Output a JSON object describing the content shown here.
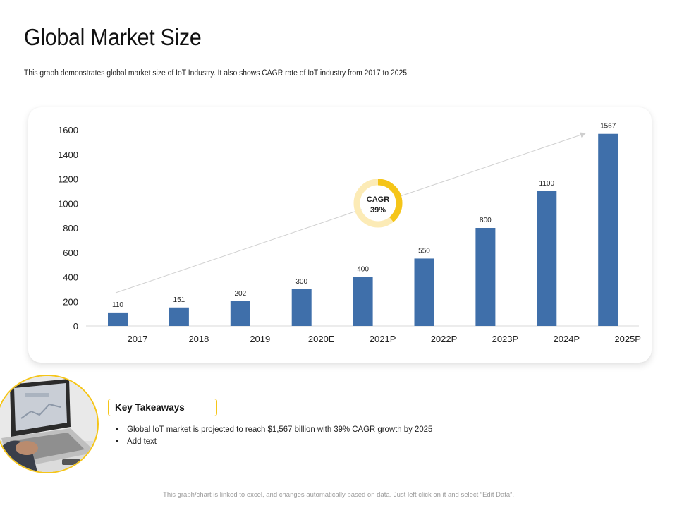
{
  "page": {
    "title": "Global Market Size",
    "subtitle": "This graph demonstrates global market size of IoT Industry. It also shows CAGR rate of IoT industry from 2017 to 2025"
  },
  "chart_data": {
    "type": "bar",
    "categories": [
      "2017",
      "2018",
      "2019",
      "2020E",
      "2021P",
      "2022P",
      "2023P",
      "2024P",
      "2025P"
    ],
    "values": [
      110,
      151,
      202,
      300,
      400,
      550,
      800,
      1100,
      1567
    ],
    "data_labels": [
      "110",
      "151",
      "202",
      "300",
      "400",
      "550",
      "800",
      "1100",
      "1567"
    ],
    "ylim": [
      0,
      1600
    ],
    "yticks": [
      0,
      200,
      400,
      600,
      800,
      1000,
      1200,
      1400,
      1600
    ],
    "ytick_labels": [
      "0",
      "200",
      "400",
      "600",
      "800",
      "1000",
      "1200",
      "1400",
      "1600"
    ],
    "bar_color": "#3f6faa",
    "grid": false,
    "trend_arrow": true,
    "cagr_badge": {
      "label": "CAGR",
      "value": "39%",
      "fraction": 0.39,
      "ring_color": "#f5c518",
      "ring_bg_color": "#fcebb6"
    }
  },
  "takeaways": {
    "heading": "Key Takeaways",
    "items": [
      "Global IoT market is projected to reach $1,567 billion with 39% CAGR growth by 2025",
      "Add text"
    ],
    "accent_color": "#f5c518"
  },
  "photo": {
    "icon": "laptop-typing-photo"
  },
  "footer": {
    "note": "This graph/chart is linked to excel, and changes automatically based on data. Just left click on it and select “Edit Data”."
  }
}
